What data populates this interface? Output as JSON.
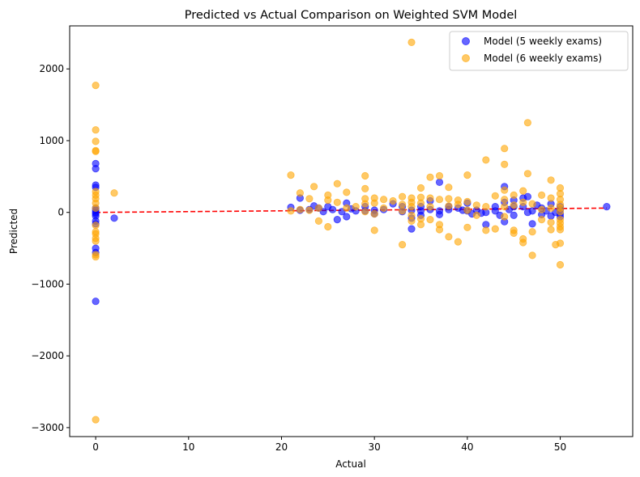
{
  "chart_data": {
    "type": "scatter",
    "title": "Predicted vs Actual Comparison on Weighted SVM Model",
    "xlabel": "Actual",
    "ylabel": "Predicted",
    "xlim": [
      -2.8,
      57.8
    ],
    "ylim": [
      -3125,
      2600
    ],
    "xticks": [
      0,
      10,
      20,
      30,
      40,
      50
    ],
    "yticks": [
      -3000,
      -2000,
      -1000,
      0,
      1000,
      2000
    ],
    "xtick_labels": [
      "0",
      "10",
      "20",
      "30",
      "40",
      "50"
    ],
    "ytick_labels": [
      "−3000",
      "−2000",
      "−1000",
      "0",
      "1000",
      "2000"
    ],
    "grid": false,
    "legend_position": "upper right",
    "series": [
      {
        "name": "Model (5 weekly exams)",
        "color": "#0000ff",
        "alpha": 0.6,
        "points": [
          [
            0,
            680
          ],
          [
            0,
            610
          ],
          [
            0,
            380
          ],
          [
            0,
            350
          ],
          [
            0,
            60
          ],
          [
            0,
            30
          ],
          [
            0,
            0
          ],
          [
            0,
            -20
          ],
          [
            0,
            -50
          ],
          [
            0,
            -120
          ],
          [
            0,
            -160
          ],
          [
            0,
            -500
          ],
          [
            0,
            -560
          ],
          [
            0,
            -1240
          ],
          [
            2,
            -80
          ],
          [
            21,
            70
          ],
          [
            22,
            200
          ],
          [
            22,
            30
          ],
          [
            23,
            40
          ],
          [
            23.5,
            90
          ],
          [
            24,
            60
          ],
          [
            24.5,
            10
          ],
          [
            25,
            80
          ],
          [
            25.5,
            40
          ],
          [
            26,
            -100
          ],
          [
            26.5,
            10
          ],
          [
            27,
            130
          ],
          [
            27,
            -60
          ],
          [
            27.5,
            50
          ],
          [
            28,
            20
          ],
          [
            29,
            80
          ],
          [
            29,
            20
          ],
          [
            30,
            30
          ],
          [
            30,
            -20
          ],
          [
            31,
            40
          ],
          [
            32,
            120
          ],
          [
            33,
            80
          ],
          [
            33,
            10
          ],
          [
            34,
            -230
          ],
          [
            34,
            30
          ],
          [
            34,
            -80
          ],
          [
            35,
            80
          ],
          [
            35,
            20
          ],
          [
            35,
            -40
          ],
          [
            36,
            160
          ],
          [
            36,
            40
          ],
          [
            37,
            420
          ],
          [
            37,
            -30
          ],
          [
            37,
            20
          ],
          [
            38,
            80
          ],
          [
            38,
            40
          ],
          [
            39,
            60
          ],
          [
            39.5,
            30
          ],
          [
            40,
            130
          ],
          [
            40,
            20
          ],
          [
            40.5,
            -20
          ],
          [
            41,
            30
          ],
          [
            41.5,
            -10
          ],
          [
            42,
            -170
          ],
          [
            42,
            0
          ],
          [
            43,
            80
          ],
          [
            43,
            20
          ],
          [
            43.5,
            -40
          ],
          [
            44,
            360
          ],
          [
            44,
            140
          ],
          [
            44,
            -130
          ],
          [
            44.5,
            40
          ],
          [
            45,
            170
          ],
          [
            45,
            80
          ],
          [
            45,
            -40
          ],
          [
            46,
            200
          ],
          [
            46,
            80
          ],
          [
            46.5,
            220
          ],
          [
            46.5,
            0
          ],
          [
            47,
            -160
          ],
          [
            47,
            20
          ],
          [
            47.5,
            100
          ],
          [
            48,
            60
          ],
          [
            48,
            -30
          ],
          [
            48.5,
            20
          ],
          [
            49,
            120
          ],
          [
            49,
            -50
          ],
          [
            49.5,
            0
          ],
          [
            50,
            80
          ],
          [
            50,
            40
          ],
          [
            50,
            -20
          ],
          [
            50,
            -60
          ],
          [
            55,
            80
          ]
        ]
      },
      {
        "name": "Model (6 weekly exams)",
        "color": "#ffa500",
        "alpha": 0.6,
        "points": [
          [
            0,
            1770
          ],
          [
            0,
            1150
          ],
          [
            0,
            990
          ],
          [
            0,
            860
          ],
          [
            0,
            850
          ],
          [
            0,
            290
          ],
          [
            0,
            240
          ],
          [
            0,
            190
          ],
          [
            0,
            130
          ],
          [
            0,
            60
          ],
          [
            0,
            -180
          ],
          [
            0,
            -270
          ],
          [
            0,
            -300
          ],
          [
            0,
            -360
          ],
          [
            0,
            -400
          ],
          [
            0,
            -590
          ],
          [
            0,
            -620
          ],
          [
            0,
            -2890
          ],
          [
            2,
            270
          ],
          [
            21,
            520
          ],
          [
            21,
            20
          ],
          [
            22,
            270
          ],
          [
            22,
            40
          ],
          [
            23,
            190
          ],
          [
            23,
            30
          ],
          [
            23.5,
            360
          ],
          [
            24,
            -120
          ],
          [
            24,
            60
          ],
          [
            25,
            240
          ],
          [
            25,
            170
          ],
          [
            25,
            -200
          ],
          [
            26,
            400
          ],
          [
            26,
            140
          ],
          [
            27,
            280
          ],
          [
            27,
            60
          ],
          [
            28,
            80
          ],
          [
            29,
            510
          ],
          [
            29,
            330
          ],
          [
            29,
            190
          ],
          [
            29,
            120
          ],
          [
            29,
            10
          ],
          [
            30,
            200
          ],
          [
            30,
            130
          ],
          [
            30,
            -20
          ],
          [
            30,
            -250
          ],
          [
            31,
            180
          ],
          [
            31,
            60
          ],
          [
            32,
            160
          ],
          [
            33,
            220
          ],
          [
            33,
            110
          ],
          [
            33,
            20
          ],
          [
            33,
            -450
          ],
          [
            34,
            2370
          ],
          [
            34,
            200
          ],
          [
            34,
            140
          ],
          [
            34,
            80
          ],
          [
            34,
            -40
          ],
          [
            34,
            -120
          ],
          [
            35,
            340
          ],
          [
            35,
            210
          ],
          [
            35,
            130
          ],
          [
            35,
            -90
          ],
          [
            35,
            -170
          ],
          [
            36,
            490
          ],
          [
            36,
            200
          ],
          [
            36,
            80
          ],
          [
            36,
            -100
          ],
          [
            37,
            510
          ],
          [
            37,
            180
          ],
          [
            37,
            -170
          ],
          [
            37,
            -240
          ],
          [
            38,
            350
          ],
          [
            38,
            190
          ],
          [
            38,
            90
          ],
          [
            38,
            -340
          ],
          [
            39,
            170
          ],
          [
            39,
            110
          ],
          [
            39,
            -410
          ],
          [
            40,
            520
          ],
          [
            40,
            150
          ],
          [
            40,
            30
          ],
          [
            40,
            -210
          ],
          [
            41,
            100
          ],
          [
            41,
            -40
          ],
          [
            42,
            730
          ],
          [
            42,
            80
          ],
          [
            42,
            -250
          ],
          [
            43,
            230
          ],
          [
            43,
            -230
          ],
          [
            44,
            890
          ],
          [
            44,
            670
          ],
          [
            44,
            310
          ],
          [
            44,
            180
          ],
          [
            44,
            80
          ],
          [
            44,
            -60
          ],
          [
            45,
            240
          ],
          [
            45,
            100
          ],
          [
            45,
            -250
          ],
          [
            45,
            -290
          ],
          [
            46,
            300
          ],
          [
            46,
            140
          ],
          [
            46,
            -370
          ],
          [
            46,
            -420
          ],
          [
            46.5,
            1250
          ],
          [
            46.5,
            540
          ],
          [
            47,
            120
          ],
          [
            47,
            -270
          ],
          [
            47,
            -600
          ],
          [
            48,
            240
          ],
          [
            48,
            40
          ],
          [
            48,
            -100
          ],
          [
            49,
            450
          ],
          [
            49,
            200
          ],
          [
            49,
            60
          ],
          [
            49,
            -140
          ],
          [
            49,
            -240
          ],
          [
            49.5,
            -450
          ],
          [
            50,
            340
          ],
          [
            50,
            260
          ],
          [
            50,
            180
          ],
          [
            50,
            110
          ],
          [
            50,
            60
          ],
          [
            50,
            10
          ],
          [
            50,
            -100
          ],
          [
            50,
            -150
          ],
          [
            50,
            -200
          ],
          [
            50,
            -240
          ],
          [
            50,
            -430
          ],
          [
            50,
            -730
          ]
        ]
      }
    ],
    "reference_line": {
      "color": "#ff0000",
      "style": "dashed",
      "points": [
        [
          0,
          0
        ],
        [
          55,
          60
        ]
      ]
    }
  }
}
